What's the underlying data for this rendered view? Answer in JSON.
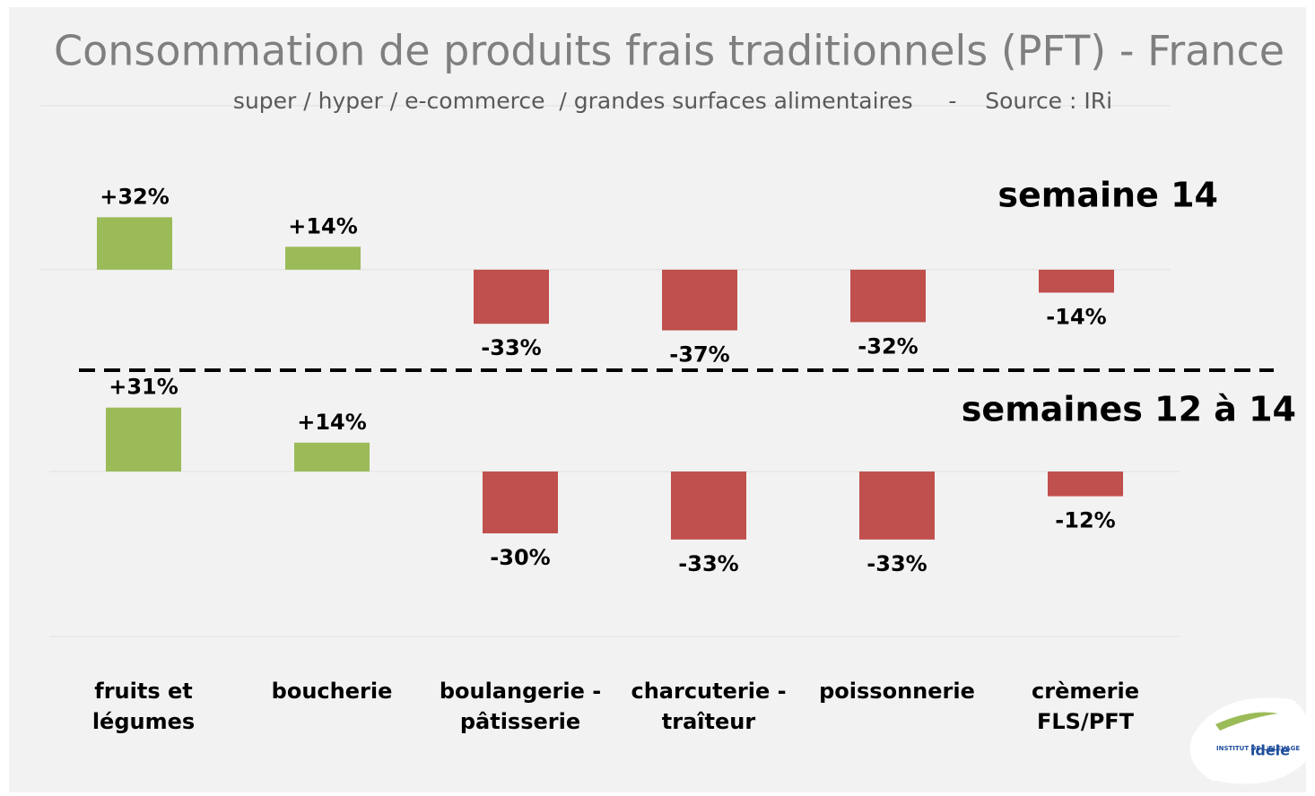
{
  "header": {
    "title": "Consommation de produits frais traditionnels (PFT) - France",
    "subtitle": "super / hyper / e-commerce  / grandes surfaces alimentaires     -    Source : IRi"
  },
  "chart_data": [
    {
      "type": "bar",
      "title": "semaine 14",
      "categories": [
        "fruits et\nlégumes",
        "boucherie",
        "boulangerie -\npâtisserie",
        "charcuterie -\ntraîteur",
        "poissonnerie",
        "crèmerie\nFLS/PFT"
      ],
      "values": [
        32,
        14,
        -33,
        -37,
        -32,
        -14
      ],
      "value_labels": [
        "+32%",
        "+14%",
        "-33%",
        "-37%",
        "-32%",
        "-14%"
      ],
      "positive_color": "#9bbb59",
      "negative_color": "#c0504d",
      "ylim": [
        -60,
        100
      ]
    },
    {
      "type": "bar",
      "title": "semaines 12 à 14",
      "values": [
        31,
        14,
        -30,
        -33,
        -33,
        -12
      ],
      "value_labels": [
        "+31%",
        "+14%",
        "-30%",
        "-33%",
        "-33%",
        "-12%"
      ],
      "positive_color": "#9bbb59",
      "negative_color": "#c0504d",
      "ylim": [
        -80,
        60
      ]
    }
  ],
  "logo": {
    "name": "idele",
    "org": "INSTITUT DE L'ELEVAGE"
  }
}
